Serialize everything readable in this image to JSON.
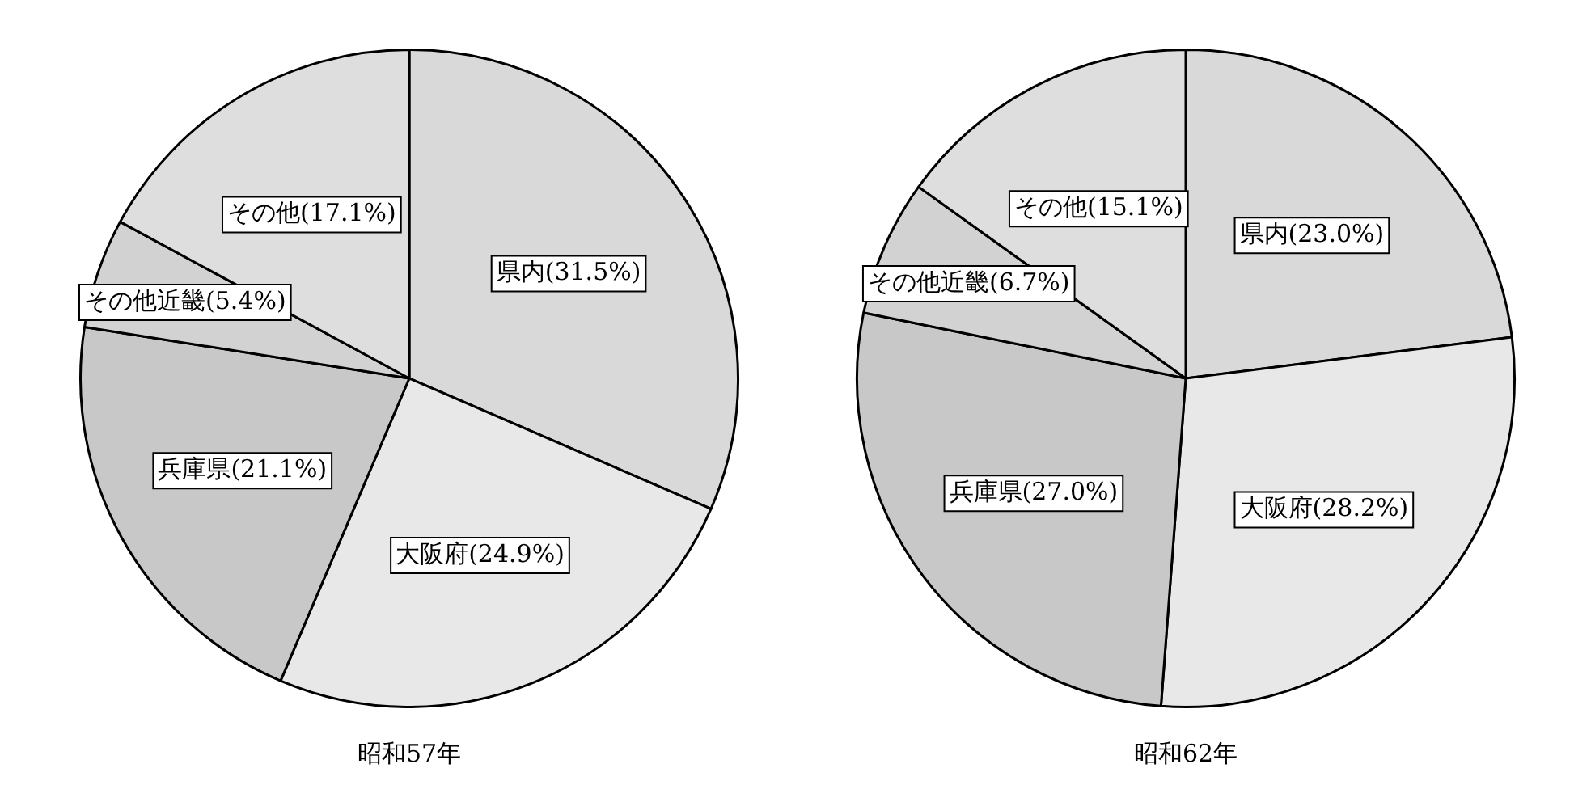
{
  "chart_data": [
    {
      "type": "pie",
      "title": "昭和57年",
      "categories": [
        "県内(31.5%)",
        "大阪府(24.9%)",
        "兵庫県(21.1%)",
        "その他近畿(5.4%)",
        "その他(17.1%)"
      ],
      "values": [
        31.5,
        24.9,
        21.1,
        5.4,
        17.1
      ],
      "colors": [
        "#d9d9d9",
        "#e8e8e8",
        "#c8c8c8",
        "#d2d2d2",
        "#dedede"
      ],
      "legend": false
    },
    {
      "type": "pie",
      "title": "昭和62年",
      "categories": [
        "県内(23.0%)",
        "大阪府(28.2%)",
        "兵庫県(27.0%)",
        "その他近畿(6.7%)",
        "その他(15.1%)"
      ],
      "values": [
        23.0,
        28.2,
        27.0,
        6.7,
        15.1
      ],
      "colors": [
        "#d9d9d9",
        "#e8e8e8",
        "#c8c8c8",
        "#d2d2d2",
        "#dedede"
      ],
      "legend": false
    }
  ]
}
